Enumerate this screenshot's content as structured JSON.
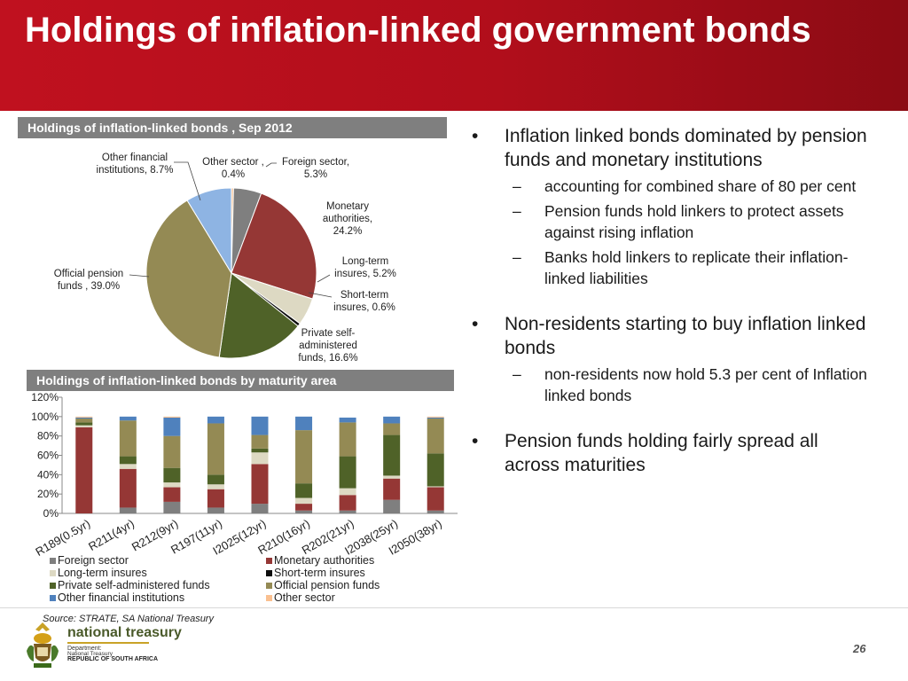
{
  "slide": {
    "title": "Holdings of inflation-linked government bonds",
    "page_number": "26",
    "source": "Source: STRATE, SA National Treasury",
    "logo": {
      "name": "national treasury",
      "line1": "Department:",
      "line2": "National Treasury",
      "line3": "REPUBLIC OF SOUTH AFRICA"
    }
  },
  "bullets": [
    {
      "text": "Inflation linked bonds dominated by pension funds and monetary institutions",
      "sub": [
        "accounting for combined share of 80 per cent",
        "Pension funds hold linkers to protect assets against rising inflation",
        "Banks hold linkers to replicate their inflation-linked liabilities"
      ]
    },
    {
      "text": "Non-residents starting to buy inflation linked bonds",
      "sub": [
        "non-residents now hold 5.3 per cent of Inflation linked bonds"
      ]
    },
    {
      "text": "Pension funds holding fairly spread all across maturities",
      "sub": []
    }
  ],
  "chart_data": [
    {
      "type": "pie",
      "title": "Holdings of inflation-linked bonds , Sep 2012",
      "labels": [
        "Other sector",
        "Foreign sector",
        "Monetary authorities",
        "Long-term insures",
        "Short-term insures",
        "Private self-administered funds",
        "Official pension funds",
        "Other financial institutions"
      ],
      "values": [
        0.4,
        5.3,
        24.2,
        5.2,
        0.6,
        16.6,
        39.0,
        8.7
      ],
      "colors": [
        "#fac090",
        "#7f7f7f",
        "#953735",
        "#ddd9c3",
        "#0d0d0d",
        "#4f6228",
        "#948a54",
        "#8eb4e3"
      ],
      "label_text": [
        "Other sector , 0.4%",
        "Foreign sector, 5.3%",
        "Monetary authorities, 24.2%",
        "Long-term insures, 5.2%",
        "Short-term insures, 0.6%",
        "Private self-administered funds, 16.6%",
        "Official pension funds , 39.0%",
        "Other financial institutions, 8.7%"
      ]
    },
    {
      "type": "bar",
      "stacked": true,
      "title": "Holdings of inflation-linked bonds by maturity area",
      "categories": [
        "R189(0.5yr)",
        "R211(4yr)",
        "R212(9yr)",
        "R197(11yr)",
        "I2025(12yr)",
        "R210(16yr)",
        "R202(21yr)",
        "I2038(25yr)",
        "I2050(38yr)"
      ],
      "ylim": [
        0,
        120
      ],
      "yticks": [
        "0%",
        "20%",
        "40%",
        "60%",
        "80%",
        "100%",
        "120%"
      ],
      "series": [
        {
          "name": "Foreign sector",
          "color": "#7f7f7f",
          "values": [
            0,
            6,
            12,
            6,
            10,
            3,
            3,
            14,
            3
          ]
        },
        {
          "name": "Monetary authorities",
          "color": "#953735",
          "values": [
            89,
            40,
            15,
            19,
            41,
            7,
            16,
            22,
            24
          ]
        },
        {
          "name": "Long-term insures",
          "color": "#ddd9c3",
          "values": [
            2,
            5,
            5,
            5,
            12,
            6,
            7,
            3,
            1
          ]
        },
        {
          "name": "Short-term insures",
          "color": "#0d0d0d",
          "values": [
            0,
            0,
            0,
            0,
            0,
            0,
            0,
            0,
            0
          ]
        },
        {
          "name": "Private self-administered funds",
          "color": "#4f6228",
          "values": [
            3,
            8,
            15,
            10,
            4,
            15,
            33,
            42,
            34
          ]
        },
        {
          "name": "Official pension funds",
          "color": "#948a54",
          "values": [
            4,
            37,
            33,
            53,
            14,
            55,
            35,
            12,
            36
          ]
        },
        {
          "name": "Other financial institutions",
          "color": "#4f81bd",
          "values": [
            1,
            4,
            19,
            7,
            19,
            14,
            5,
            7,
            1
          ]
        },
        {
          "name": "Other sector",
          "color": "#fac090",
          "values": [
            1,
            0,
            1,
            0,
            0,
            0,
            0,
            0,
            1
          ]
        }
      ],
      "legend": {
        "position": "bottom"
      }
    }
  ]
}
